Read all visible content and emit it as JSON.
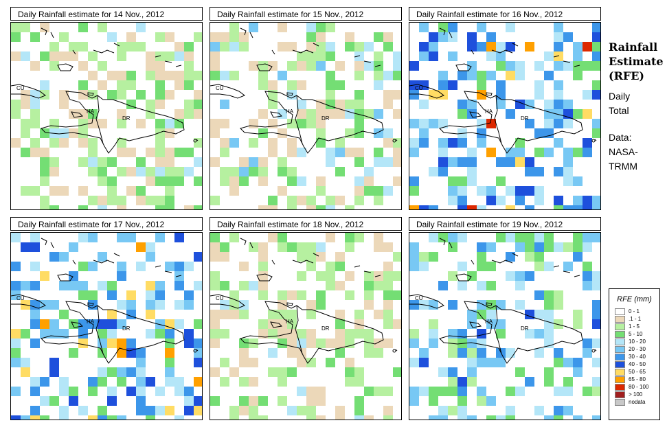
{
  "side": {
    "title_lines": [
      "Rainfall",
      "Estimate",
      "(RFE)"
    ],
    "subtitle_lines": [
      "Daily",
      "Total"
    ],
    "source_lines": [
      "Data:",
      "NASA-",
      "TRMM"
    ]
  },
  "legend": {
    "title": "RFE (mm)",
    "items": [
      {
        "label": "0 - 1",
        "color": "#ffffff"
      },
      {
        "label": ".1 - 1",
        "color": "#ecd8b9"
      },
      {
        "label": "1 - 5",
        "color": "#b6f0a0"
      },
      {
        "label": "5 - 10",
        "color": "#74de74"
      },
      {
        "label": "10 - 20",
        "color": "#b4e6f8"
      },
      {
        "label": "20 - 30",
        "color": "#78c8f4"
      },
      {
        "label": "30 - 40",
        "color": "#3c96ea"
      },
      {
        "label": "40 - 50",
        "color": "#1e50dc"
      },
      {
        "label": "50 - 65",
        "color": "#ffdc64"
      },
      {
        "label": "65 - 80",
        "color": "#ffa000"
      },
      {
        "label": "80 - 100",
        "color": "#dc2800"
      },
      {
        "label": "> 100",
        "color": "#a01e1e"
      },
      {
        "label": "nodata",
        "color": "#c8c8c8"
      }
    ]
  },
  "map_labels": {
    "cuba": "CU",
    "haiti": "HA",
    "dominican_republic": "DR"
  },
  "panels": [
    {
      "title": "Daily Rainfall estimate for  14 Nov., 2012",
      "intensity": 1
    },
    {
      "title": "Daily Rainfall estimate for  15 Nov., 2012",
      "intensity": 2
    },
    {
      "title": "Daily Rainfall estimate for  16 Nov., 2012",
      "intensity": 4
    },
    {
      "title": "Daily Rainfall estimate for  17 Nov., 2012",
      "intensity": 4
    },
    {
      "title": "Daily Rainfall estimate for  18 Nov., 2012",
      "intensity": 1
    },
    {
      "title": "Daily Rainfall estimate for  19 Nov., 2012",
      "intensity": 3
    }
  ]
}
